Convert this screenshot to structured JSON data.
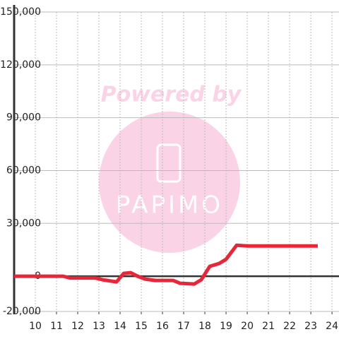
{
  "chart_data": {
    "type": "line",
    "watermark": [
      "Powered by",
      "PAPIMO"
    ],
    "x": [
      9,
      11.33,
      11.63,
      12.83,
      13.17,
      13.83,
      14.17,
      14.5,
      14.83,
      15.17,
      15.67,
      16.5,
      16.83,
      17.5,
      17.83,
      18.23,
      18.67,
      19,
      19.5,
      20,
      23.33
    ],
    "series": [
      {
        "color": "#e8263a",
        "values": [
          0,
          0,
          -1000,
          -1000,
          -2000,
          -3200,
          1600,
          2000,
          0,
          -1600,
          -2400,
          -2400,
          -4000,
          -4400,
          -2000,
          5600,
          7200,
          9600,
          17600,
          17200,
          17200
        ]
      }
    ],
    "xlim": [
      9,
      24.33
    ],
    "xticks": [
      10,
      11,
      12,
      13,
      14,
      15,
      16,
      17,
      18,
      19,
      20,
      21,
      22,
      23,
      24
    ],
    "ylim": [
      -20000,
      150000
    ],
    "yticks": [
      {
        "value": -20000,
        "label": "-20,000"
      },
      0,
      {
        "value": 30000,
        "label": "30,000"
      },
      {
        "value": 60000,
        "label": "60,000"
      },
      {
        "value": 90000,
        "label": "90,000"
      },
      {
        "value": 120000,
        "label": "120,000"
      },
      {
        "value": 150000,
        "label": "150,000"
      }
    ],
    "grid": true
  }
}
